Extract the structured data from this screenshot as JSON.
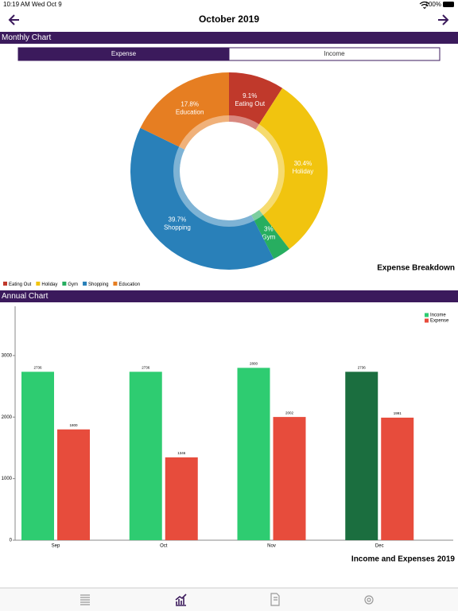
{
  "status_bar": {
    "time": "10:19 AM",
    "date": "Wed Oct 9",
    "battery": "100%"
  },
  "nav": {
    "title": "October 2019"
  },
  "monthly_section": {
    "title": "Monthly Chart",
    "tabs": [
      "Expense",
      "Income"
    ],
    "selected_tab": 0
  },
  "annual_section": {
    "title": "Annual Chart"
  },
  "chart_data": [
    {
      "type": "pie",
      "donut": true,
      "title": "Expense Breakdown",
      "categories": [
        "Eating Out",
        "Holiday",
        "Gym",
        "Shopping",
        "Education"
      ],
      "values": [
        9.1,
        30.4,
        3,
        39.7,
        17.8
      ],
      "value_labels": [
        "9.1%",
        "30.4%",
        "3%",
        "39.7%",
        "17.8%"
      ],
      "colors": [
        "#c0392b",
        "#f1c40f",
        "#27ae60",
        "#2980b9",
        "#e67e22"
      ],
      "legend": "bottom-left"
    },
    {
      "type": "bar",
      "title": "Income and Expenses 2019",
      "categories": [
        "Sep",
        "Oct",
        "Nov",
        "Dec"
      ],
      "series": [
        {
          "name": "Income",
          "color": "#2ecc71",
          "values": [
            2736,
            2736,
            2800,
            2736
          ],
          "bar_colors": [
            "#2ecc71",
            "#2ecc71",
            "#2ecc71",
            "#1b6e3f"
          ]
        },
        {
          "name": "Expense",
          "color": "#e74c3c",
          "values": [
            1800,
            1346,
            2002,
            1991
          ]
        }
      ],
      "ylim": [
        0,
        3800
      ],
      "yticks": [
        0,
        1000,
        2000,
        3000
      ],
      "legend": "top-right",
      "show_values": true
    }
  ]
}
